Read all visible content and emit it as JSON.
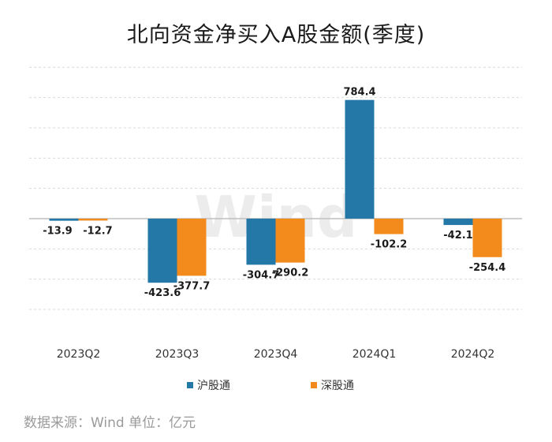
{
  "title": "北向资金净买入A股金额(季度)",
  "source": "数据来源：Wind  单位：亿元",
  "watermark": "Wind",
  "colors": {
    "hgt": "#2378a8",
    "sgt": "#f28a1c",
    "grid": "#d9d9d9",
    "zero": "#bfbfbf"
  },
  "chart_data": {
    "type": "bar",
    "title": "北向资金净买入A股金额(季度)",
    "categories": [
      "2023Q2",
      "2023Q3",
      "2023Q4",
      "2024Q1",
      "2024Q2"
    ],
    "series": [
      {
        "name": "沪股通",
        "values": [
          -13.9,
          -423.6,
          -304.7,
          784.4,
          -42.1
        ]
      },
      {
        "name": "深股通",
        "values": [
          -12.7,
          -377.7,
          -290.2,
          -102.2,
          -254.4
        ]
      }
    ],
    "ylim": [
      -600,
      1000
    ],
    "grid": true,
    "legend": "bottom",
    "units": "亿元"
  }
}
